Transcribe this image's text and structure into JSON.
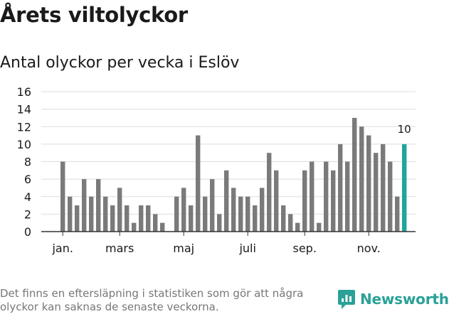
{
  "header": {
    "title": "Årets viltolyckor",
    "subtitle": "Antal olyckor per vecka i Eslöv"
  },
  "footer": {
    "note": "Det finns en eftersläpning i statistiken som gör att några olyckor kan saknas de senaste veckorna.",
    "logo_text": "Newsworthy"
  },
  "colors": {
    "bar": "#7a7a7a",
    "highlight": "#1fa59b",
    "grid": "#dddddd",
    "axis": "#333333",
    "logo": "#2aa198"
  },
  "chart_data": {
    "type": "bar",
    "title": "Antal olyckor per vecka i Eslöv",
    "xlabel": "",
    "ylabel": "",
    "ylim": [
      0,
      16
    ],
    "yticks": [
      0,
      2,
      4,
      6,
      8,
      10,
      12,
      14,
      16
    ],
    "grid": true,
    "weeks": [
      1,
      2,
      3,
      4,
      5,
      6,
      7,
      8,
      9,
      10,
      11,
      12,
      13,
      14,
      15,
      16,
      17,
      18,
      19,
      20,
      21,
      22,
      23,
      24,
      25,
      26,
      27,
      28,
      29,
      30,
      31,
      32,
      33,
      34,
      35,
      36,
      37,
      38,
      39,
      40,
      41,
      42,
      43,
      44,
      45,
      46,
      47,
      48,
      49
    ],
    "values": [
      8,
      4,
      3,
      6,
      4,
      6,
      4,
      3,
      5,
      3,
      1,
      3,
      3,
      2,
      1,
      0,
      4,
      5,
      3,
      11,
      4,
      6,
      2,
      7,
      5,
      4,
      4,
      3,
      5,
      9,
      7,
      3,
      2,
      1,
      7,
      8,
      1,
      8,
      7,
      10,
      8,
      13,
      12,
      11,
      9,
      10,
      8,
      4,
      10
    ],
    "highlight_last": true,
    "last_value_label": "10",
    "x_tick_labels": [
      {
        "label": "jan.",
        "week": 1
      },
      {
        "label": "mars",
        "week": 9
      },
      {
        "label": "maj",
        "week": 18
      },
      {
        "label": "juli",
        "week": 27
      },
      {
        "label": "sep.",
        "week": 35
      },
      {
        "label": "nov.",
        "week": 44
      }
    ]
  }
}
